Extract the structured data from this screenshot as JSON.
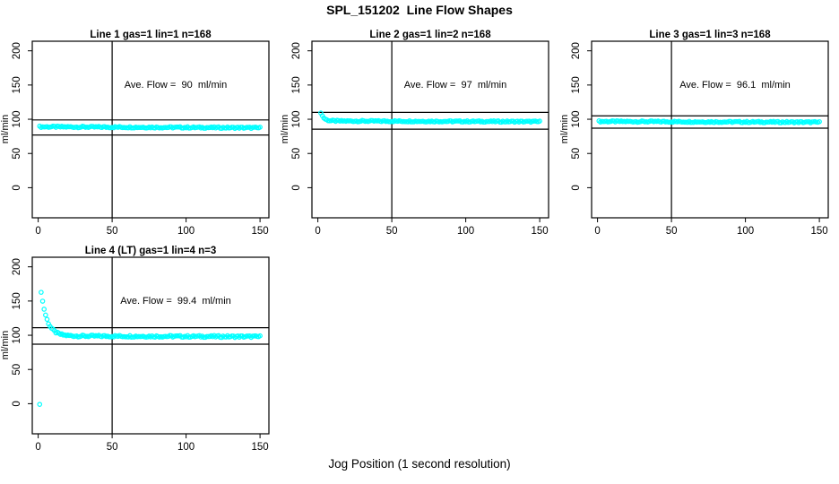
{
  "header": {
    "title": "SPL_151202  Line Flow Shapes"
  },
  "footer": {
    "xlabel": "Jog Position (1 second resolution)"
  },
  "colors": {
    "points": "#00FFFF",
    "lines": "#000000",
    "background": "#ffffff"
  },
  "chart_data": {
    "type": "scatter",
    "title": "SPL_151202  Line Flow Shapes",
    "xlabel": "Jog Position (1 second resolution)",
    "grid": false,
    "point_style": "open-circle",
    "point_color": "#00FFFF",
    "x_axis": {
      "ticks": [
        0,
        50,
        100,
        150
      ],
      "range": [
        -4,
        156
      ]
    },
    "y_axis": {
      "ticks": [
        0,
        50,
        100,
        150,
        200
      ],
      "range": [
        -44,
        214
      ],
      "label": "ml/min"
    },
    "panels": [
      {
        "id": "line1",
        "title": "Line 1 gas=1 lin=1 n=168",
        "annotation": "Ave. Flow =  90  ml/min",
        "ave_flow": 90,
        "vline_x": 50,
        "limit_lines": [
          99,
          77
        ],
        "series": {
          "x_start": 1,
          "x_end": 150,
          "peak": 89,
          "plateau_start": 89,
          "plateau_end": 87.5,
          "decay": 0.5,
          "jitter": 1.1
        },
        "extra_points": []
      },
      {
        "id": "line2",
        "title": "Line 2 gas=1 lin=2 n=168",
        "annotation": "Ave. Flow =  97  ml/min",
        "ave_flow": 97,
        "vline_x": 50,
        "limit_lines": [
          110,
          85.5
        ],
        "series": {
          "x_start": 2,
          "x_end": 150,
          "peak": 110,
          "plateau_start": 97.5,
          "plateau_end": 96.5,
          "decay": 0.5,
          "jitter": 1.0
        },
        "extra_points": []
      },
      {
        "id": "line3",
        "title": "Line 3 gas=1 lin=3 n=168",
        "annotation": "Ave. Flow =  96.1  ml/min",
        "ave_flow": 96.1,
        "vline_x": 50,
        "limit_lines": [
          105,
          87
        ],
        "series": {
          "x_start": 1,
          "x_end": 150,
          "peak": 96.8,
          "plateau_start": 96.8,
          "plateau_end": 95.6,
          "decay": 0.5,
          "jitter": 1.0
        },
        "extra_points": []
      },
      {
        "id": "line4",
        "title": "Line 4 (LT) gas=1 lin=4 n=3",
        "annotation": "Ave. Flow =  99.4  ml/min",
        "ave_flow": 99.4,
        "vline_x": 50,
        "limit_lines": [
          111,
          87
        ],
        "series": {
          "x_start": 2,
          "x_end": 150,
          "peak": 164,
          "plateau_start": 99,
          "plateau_end": 98,
          "decay": 0.25,
          "jitter": 1.4
        },
        "extra_points": [
          [
            1,
            -1
          ]
        ]
      }
    ]
  }
}
